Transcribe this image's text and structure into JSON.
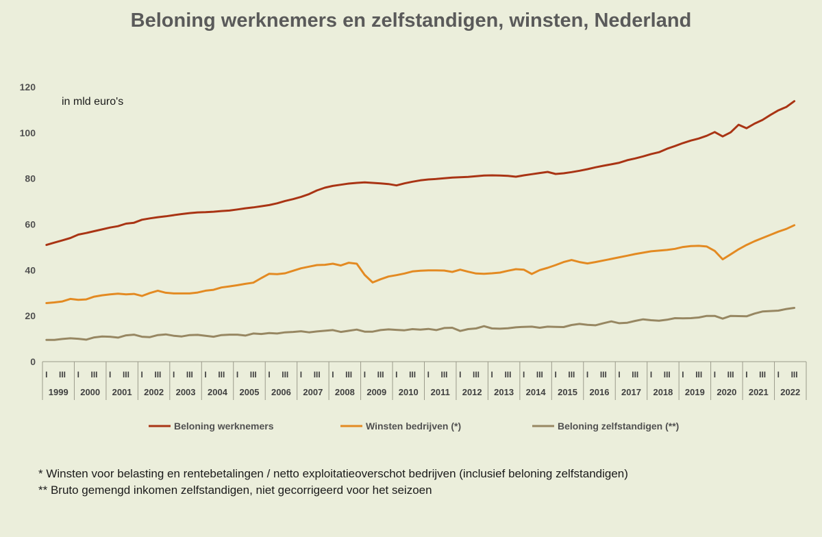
{
  "chart_data": {
    "type": "line",
    "title": "Beloning werknemers en zelfstandigen, winsten, Nederland",
    "annotation": "in mld euro's",
    "ylim": [
      0,
      120
    ],
    "yticks": [
      0,
      20,
      40,
      60,
      80,
      100,
      120
    ],
    "grid": false,
    "legend_position": "bottom",
    "years": [
      "1999",
      "2000",
      "2001",
      "2002",
      "2003",
      "2004",
      "2005",
      "2006",
      "2007",
      "2008",
      "2009",
      "2010",
      "2011",
      "2012",
      "2013",
      "2014",
      "2015",
      "2016",
      "2017",
      "2018",
      "2019",
      "2020",
      "2021",
      "2022"
    ],
    "quarter_tick_labels": [
      "I",
      "III"
    ],
    "series": [
      {
        "name": "Beloning werknemers",
        "color": "#a93414",
        "values": [
          51.0,
          52.0,
          53.0,
          54.0,
          55.5,
          56.2,
          57.0,
          57.8,
          58.6,
          59.2,
          60.3,
          60.7,
          62.0,
          62.6,
          63.1,
          63.5,
          64.0,
          64.5,
          64.9,
          65.2,
          65.3,
          65.5,
          65.8,
          66.0,
          66.5,
          67.0,
          67.4,
          67.9,
          68.4,
          69.2,
          70.2,
          71.0,
          72.0,
          73.2,
          74.8,
          76.0,
          76.8,
          77.3,
          77.8,
          78.1,
          78.3,
          78.1,
          77.9,
          77.6,
          77.0,
          77.9,
          78.6,
          79.2,
          79.6,
          79.8,
          80.1,
          80.4,
          80.6,
          80.7,
          81.0,
          81.3,
          81.4,
          81.3,
          81.2,
          80.8,
          81.4,
          81.9,
          82.4,
          82.9,
          82.0,
          82.3,
          82.8,
          83.4,
          84.1,
          84.9,
          85.6,
          86.2,
          86.9,
          88.0,
          88.8,
          89.7,
          90.7,
          91.5,
          93.0,
          94.2,
          95.5,
          96.6,
          97.5,
          98.7,
          100.3,
          98.4,
          100.2,
          103.5,
          102.0,
          104.0,
          105.6,
          107.8,
          109.8,
          111.3,
          113.8
        ]
      },
      {
        "name": "Winsten bedrijven (*)",
        "color": "#e38a22",
        "values": [
          25.6,
          25.9,
          26.3,
          27.4,
          27.0,
          27.2,
          28.4,
          29.0,
          29.4,
          29.7,
          29.4,
          29.6,
          28.7,
          30.0,
          31.0,
          30.1,
          29.8,
          29.8,
          29.8,
          30.2,
          31.0,
          31.4,
          32.4,
          32.9,
          33.4,
          34.0,
          34.5,
          36.5,
          38.4,
          38.2,
          38.6,
          39.7,
          40.8,
          41.5,
          42.2,
          42.3,
          42.8,
          42.0,
          43.2,
          42.8,
          37.9,
          34.6,
          36.0,
          37.2,
          37.8,
          38.5,
          39.4,
          39.7,
          39.9,
          39.9,
          39.8,
          39.2,
          40.2,
          39.3,
          38.5,
          38.4,
          38.6,
          38.9,
          39.7,
          40.4,
          40.2,
          38.3,
          40.0,
          41.0,
          42.2,
          43.5,
          44.4,
          43.5,
          42.9,
          43.5,
          44.2,
          44.9,
          45.6,
          46.3,
          47.0,
          47.6,
          48.2,
          48.5,
          48.8,
          49.3,
          50.1,
          50.5,
          50.6,
          50.3,
          48.4,
          44.7,
          46.9,
          49.1,
          51.0,
          52.6,
          54.0,
          55.4,
          56.8,
          58.0,
          59.6
        ]
      },
      {
        "name": "Beloning zelfstandigen (**)",
        "color": "#978762",
        "values": [
          9.5,
          9.5,
          9.9,
          10.2,
          10.0,
          9.6,
          10.6,
          11.0,
          10.9,
          10.5,
          11.5,
          11.8,
          10.9,
          10.7,
          11.6,
          11.9,
          11.3,
          11.0,
          11.6,
          11.7,
          11.3,
          10.9,
          11.6,
          11.8,
          11.8,
          11.4,
          12.3,
          12.1,
          12.5,
          12.3,
          12.8,
          13.0,
          13.3,
          12.8,
          13.2,
          13.5,
          13.8,
          13.0,
          13.5,
          14.0,
          13.1,
          13.1,
          13.8,
          14.1,
          13.9,
          13.7,
          14.2,
          14.0,
          14.3,
          13.8,
          14.7,
          14.8,
          13.4,
          14.2,
          14.5,
          15.5,
          14.5,
          14.4,
          14.6,
          15.0,
          15.2,
          15.3,
          14.8,
          15.3,
          15.2,
          15.1,
          16.0,
          16.5,
          16.1,
          15.9,
          16.8,
          17.6,
          16.8,
          17.0,
          17.8,
          18.5,
          18.1,
          17.9,
          18.3,
          19.0,
          18.9,
          19.0,
          19.3,
          20.0,
          20.0,
          18.8,
          20.0,
          19.9,
          19.8,
          21.0,
          21.9,
          22.1,
          22.3,
          23.0,
          23.5
        ]
      }
    ]
  },
  "footnotes": [
    "* Winsten voor belasting en rentebetalingen / netto exploitatieoverschot bedrijven (inclusief beloning zelfstandigen)",
    "** Bruto gemengd inkomen zelfstandigen, niet gecorrigeerd voor het seizoen"
  ]
}
